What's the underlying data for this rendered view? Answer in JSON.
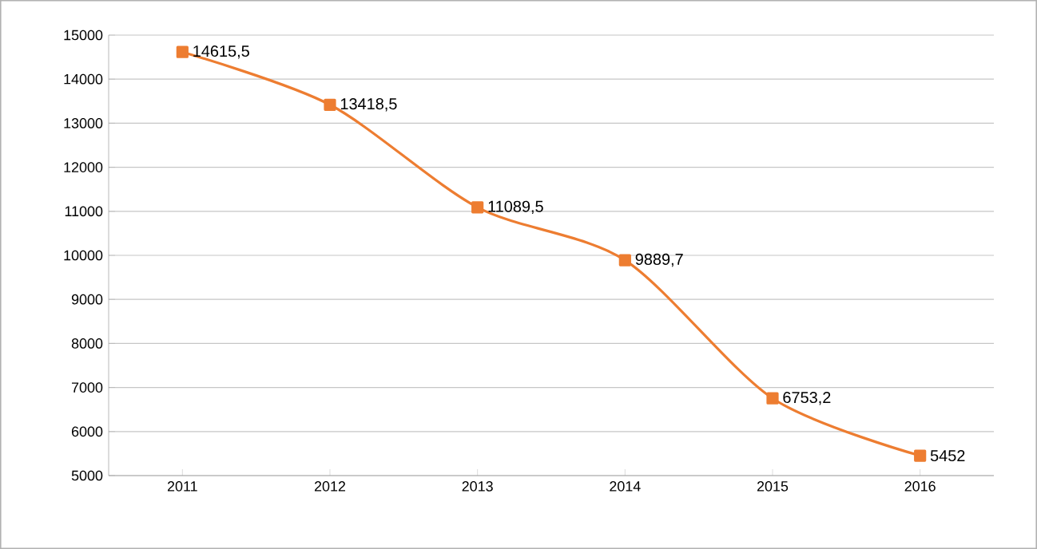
{
  "chart_data": {
    "type": "line",
    "categories": [
      "2011",
      "2012",
      "2013",
      "2014",
      "2015",
      "2016"
    ],
    "series": [
      {
        "color": "#ed7d31",
        "values": [
          14615.5,
          13418.5,
          11089.5,
          9889.7,
          6753.2,
          5452
        ],
        "value_labels": [
          "14615,5",
          "13418,5",
          "11089,5",
          "9889,7",
          "6753,2",
          "5452"
        ]
      }
    ],
    "ylim": [
      5000,
      15000
    ],
    "yticks": [
      5000,
      6000,
      7000,
      8000,
      9000,
      10000,
      11000,
      12000,
      13000,
      14000,
      15000
    ],
    "grid": "y",
    "marker": "square",
    "line_style": "solid"
  }
}
